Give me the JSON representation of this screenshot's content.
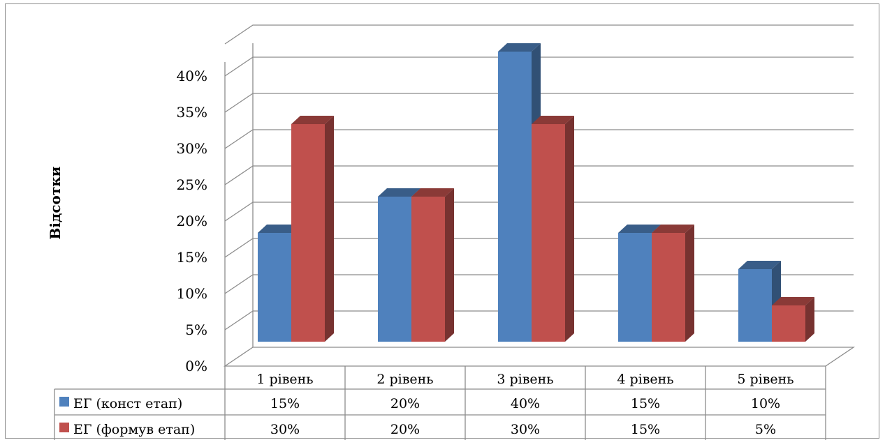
{
  "chart_data": {
    "type": "bar",
    "style": "3d-clustered-column-with-data-table",
    "categories": [
      "1 рівень",
      "2 рівень",
      "3 рівень",
      "4 рівень",
      "5 рівень"
    ],
    "series": [
      {
        "name": "ЕГ (конст етап)",
        "values": [
          15,
          20,
          40,
          15,
          10
        ],
        "labels": [
          "15%",
          "20%",
          "40%",
          "15%",
          "10%"
        ],
        "color": "#4f81bd"
      },
      {
        "name": "ЕГ (формув етап)",
        "values": [
          30,
          20,
          30,
          15,
          5
        ],
        "labels": [
          "30%",
          "20%",
          "30%",
          "15%",
          "5%"
        ],
        "color": "#c0504d"
      }
    ],
    "ylabel": "Відсотки",
    "ylim": [
      0,
      40
    ],
    "yticks": [
      "0%",
      "5%",
      "10%",
      "15%",
      "20%",
      "25%",
      "30%",
      "35%",
      "40%"
    ],
    "grid": true,
    "legend": "data-table"
  }
}
